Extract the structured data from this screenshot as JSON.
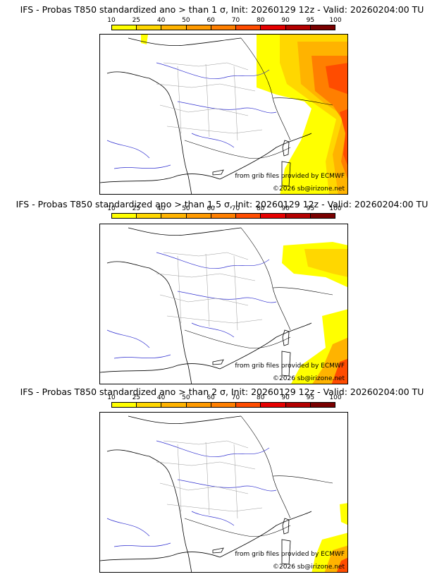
{
  "legend": {
    "ticks": [
      "10",
      "25",
      "40",
      "50",
      "60",
      "70",
      "80",
      "90",
      "95",
      "100"
    ],
    "colors": [
      "#ffff00",
      "#ffd700",
      "#ffb300",
      "#ff9a00",
      "#ff7f00",
      "#ff4c00",
      "#e60000",
      "#b40000",
      "#7a0000"
    ]
  },
  "panels": [
    {
      "title": "IFS - Probas T850  standardized ano > than 1 σ, Init: 20260129 12z - Valid: 20260204:00 TU",
      "credit": "from grib files provided by ECMWF",
      "copyright": "©2026 sb@irizone.net"
    },
    {
      "title": "IFS - Probas T850  standardized ano > than 1.5 σ, Init: 20260129 12z - Valid: 20260204:00 TU",
      "credit": "from grib files provided by ECMWF",
      "copyright": "©2026 sb@irizone.net"
    },
    {
      "title": "IFS - Probas T850  standardized ano > than 2 σ, Init: 20260129 12z - Valid: 20260204:00 TU",
      "credit": "from grib files provided by ECMWF",
      "copyright": "©2026 sb@irizone.net"
    }
  ]
}
